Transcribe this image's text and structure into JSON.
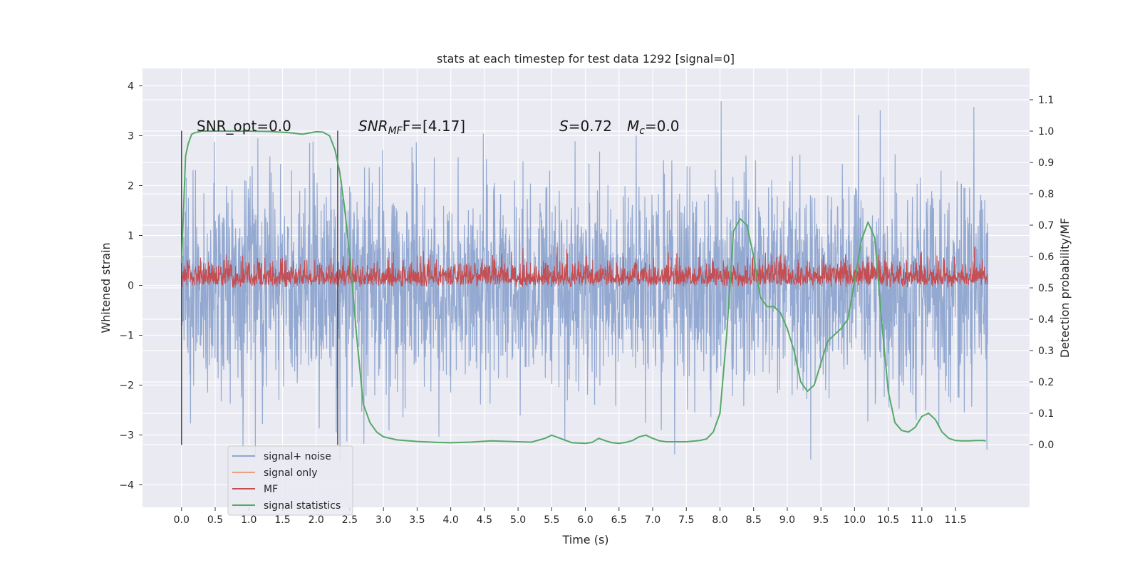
{
  "chart_data": {
    "type": "line",
    "title": "stats at each timestep for test data 1292 [signal=0]",
    "xlabel": "Time (s)",
    "ylabel_left": "Whitened strain",
    "ylabel_right": "Detection probability/MF",
    "xlim": [
      -0.58,
      12.6
    ],
    "ylim_left": [
      -4.45,
      4.35
    ],
    "ylim_right": [
      -0.2,
      1.2
    ],
    "xticks": [
      0.0,
      0.5,
      1.0,
      1.5,
      2.0,
      2.5,
      3.0,
      3.5,
      4.0,
      4.5,
      5.0,
      5.5,
      6.0,
      6.5,
      7.0,
      7.5,
      8.0,
      8.5,
      9.0,
      9.5,
      10.0,
      10.5,
      11.0,
      11.5
    ],
    "xtick_labels": [
      "0.0",
      "0.5",
      "1.0",
      "1.5",
      "2.0",
      "2.5",
      "3.0",
      "3.5",
      "4.0",
      "4.5",
      "5.0",
      "5.5",
      "6.0",
      "6.5",
      "7.0",
      "7.5",
      "8.0",
      "8.5",
      "9.0",
      "9.5",
      "10.0",
      "10.5",
      "11.0",
      "11.5"
    ],
    "yticks_left": [
      -4,
      -3,
      -2,
      -1,
      0,
      1,
      2,
      3,
      4
    ],
    "ytick_labels_left": [
      "−4",
      "−3",
      "−2",
      "−1",
      "0",
      "1",
      "2",
      "3",
      "4"
    ],
    "yticks_right": [
      0.0,
      0.1,
      0.2,
      0.3,
      0.4,
      0.5,
      0.6,
      0.7,
      0.8,
      0.9,
      1.0,
      1.1
    ],
    "ytick_labels_right": [
      "0.0",
      "0.1",
      "0.2",
      "0.3",
      "0.4",
      "0.5",
      "0.6",
      "0.7",
      "0.8",
      "0.9",
      "1.0",
      "1.1"
    ],
    "grid": true,
    "legend_placement": "lower-left",
    "legend": [
      {
        "label": "signal+ noise",
        "color": "#8fa5cf"
      },
      {
        "label": "signal only",
        "color": "#e8a080"
      },
      {
        "label": "MF",
        "color": "#c44e52"
      },
      {
        "label": "signal statistics",
        "color": "#55a868"
      }
    ],
    "annotations": {
      "snr_opt": "SNR_opt=0.0",
      "snr_mf_name": "SNR",
      "snr_mf_sub": "MF",
      "snr_mf_tail": "F=[4.17]",
      "s_name": "S",
      "s_value": "=0.72",
      "mc_name": "M",
      "mc_sub": "c",
      "mc_value": "=0.0"
    },
    "vertical_lines_x": [
      0.0,
      2.32
    ],
    "vertical_lines_range": [
      -3.2,
      3.1
    ],
    "series": [
      {
        "name": "signal+ noise",
        "axis": "left",
        "color": "#8fa5cf",
        "x_range": [
          0.0,
          11.98
        ],
        "typical_range": [
          -1.9,
          1.8
        ],
        "extreme_range": [
          -4.1,
          4.0
        ]
      },
      {
        "name": "MF",
        "axis": "right",
        "color": "#c44e52",
        "x_range": [
          0.0,
          11.98
        ],
        "typical_range": [
          0.5,
          0.58
        ],
        "extreme_range": [
          0.5,
          0.63
        ]
      },
      {
        "name": "signal statistics",
        "axis": "right",
        "color": "#55a868",
        "x": [
          0.0,
          0.03,
          0.06,
          0.1,
          0.15,
          0.2,
          0.3,
          0.5,
          0.8,
          1.0,
          1.3,
          1.6,
          1.8,
          2.0,
          2.1,
          2.2,
          2.28,
          2.35,
          2.42,
          2.5,
          2.6,
          2.7,
          2.8,
          2.9,
          3.0,
          3.2,
          3.5,
          3.8,
          4.0,
          4.3,
          4.6,
          5.0,
          5.2,
          5.4,
          5.5,
          5.6,
          5.8,
          6.0,
          6.1,
          6.2,
          6.3,
          6.4,
          6.5,
          6.6,
          6.7,
          6.8,
          6.9,
          7.0,
          7.1,
          7.2,
          7.5,
          7.7,
          7.8,
          7.9,
          8.0,
          8.1,
          8.2,
          8.3,
          8.4,
          8.5,
          8.6,
          8.7,
          8.8,
          8.9,
          9.0,
          9.1,
          9.2,
          9.3,
          9.4,
          9.5,
          9.6,
          9.7,
          9.8,
          9.9,
          10.0,
          10.1,
          10.2,
          10.3,
          10.4,
          10.5,
          10.6,
          10.7,
          10.8,
          10.9,
          11.0,
          11.1,
          11.2,
          11.3,
          11.4,
          11.5,
          11.6,
          11.7,
          11.8,
          11.9,
          11.95
        ],
        "y": [
          0.58,
          0.75,
          0.92,
          0.96,
          0.99,
          0.995,
          1.0,
          1.0,
          1.0,
          1.0,
          0.999,
          0.995,
          0.99,
          0.998,
          0.997,
          0.985,
          0.94,
          0.87,
          0.76,
          0.6,
          0.35,
          0.13,
          0.07,
          0.04,
          0.025,
          0.015,
          0.01,
          0.007,
          0.006,
          0.008,
          0.012,
          0.009,
          0.008,
          0.02,
          0.03,
          0.022,
          0.006,
          0.004,
          0.007,
          0.02,
          0.012,
          0.006,
          0.004,
          0.007,
          0.013,
          0.025,
          0.03,
          0.02,
          0.012,
          0.009,
          0.009,
          0.013,
          0.018,
          0.04,
          0.1,
          0.35,
          0.68,
          0.72,
          0.7,
          0.6,
          0.47,
          0.44,
          0.44,
          0.42,
          0.37,
          0.3,
          0.2,
          0.17,
          0.19,
          0.26,
          0.33,
          0.35,
          0.37,
          0.4,
          0.52,
          0.65,
          0.71,
          0.66,
          0.4,
          0.17,
          0.07,
          0.045,
          0.04,
          0.055,
          0.09,
          0.1,
          0.08,
          0.04,
          0.02,
          0.013,
          0.012,
          0.012,
          0.013,
          0.013,
          0.012
        ]
      }
    ]
  }
}
